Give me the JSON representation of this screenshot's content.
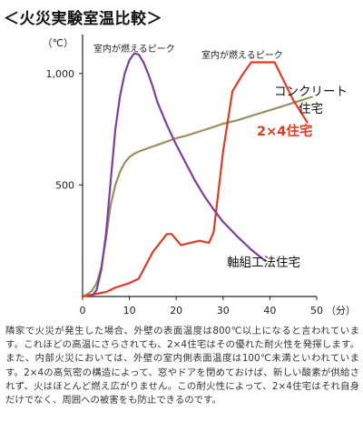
{
  "chart_data": {
    "type": "line",
    "title": "＜火災実験室温比較＞",
    "ylabel": "（℃）",
    "xlabel": "（分）",
    "xlim": [
      0,
      50
    ],
    "ylim": [
      0,
      1150
    ],
    "xticks": [
      0,
      10,
      20,
      30,
      40,
      50
    ],
    "xtick_labels": [
      "0",
      "10",
      "20",
      "30",
      "40",
      "50"
    ],
    "yticks": [
      500,
      1000
    ],
    "ytick_labels": [
      "500",
      "1,000"
    ],
    "grid": false,
    "legend": "inline-labels",
    "series": [
      {
        "name": "コンクリート住宅",
        "color": "#9a8f5f",
        "x": [
          0,
          1,
          2,
          3,
          4,
          5,
          6,
          7,
          8,
          9,
          10,
          11,
          12,
          14,
          16,
          18,
          20,
          22,
          25,
          28,
          30,
          33,
          36,
          40,
          43,
          46,
          49
        ],
        "y": [
          0,
          10,
          25,
          60,
          130,
          260,
          410,
          500,
          560,
          600,
          625,
          640,
          650,
          665,
          680,
          695,
          710,
          720,
          740,
          760,
          775,
          790,
          810,
          835,
          855,
          875,
          895
        ]
      },
      {
        "name": "2×4住宅",
        "color": "#e03a22",
        "x": [
          0,
          5,
          7,
          10,
          12,
          15,
          18,
          19,
          21,
          23,
          25,
          27,
          28,
          30,
          32,
          34,
          36,
          38,
          41,
          45,
          48
        ],
        "y": [
          0,
          20,
          40,
          60,
          80,
          200,
          280,
          280,
          230,
          240,
          250,
          240,
          290,
          650,
          920,
          990,
          1050,
          1050,
          1050,
          880,
          780
        ]
      },
      {
        "name": "軸組工法住宅",
        "color": "#7a3fa0",
        "x": [
          2,
          3,
          4,
          5,
          6,
          7,
          8,
          9,
          10,
          11,
          12,
          13,
          14,
          15,
          16,
          18,
          20,
          22,
          24,
          26,
          28,
          30,
          33,
          36,
          39
        ],
        "y": [
          0,
          30,
          120,
          280,
          520,
          750,
          900,
          1000,
          1060,
          1090,
          1085,
          1050,
          1000,
          940,
          870,
          770,
          680,
          600,
          520,
          450,
          390,
          335,
          270,
          210,
          160
        ]
      }
    ],
    "annotations": [
      {
        "text": "室内が燃えるピーク",
        "x": 11.5,
        "y": 1120
      },
      {
        "text": "室内が燃えるピーク",
        "x": 38,
        "y": 1110
      }
    ]
  },
  "description": "隣家で火災が発生した場合、外壁の表面温度は800℃以上になると言われています。これほどの高温にさらされても、2×4住宅はその優れた耐火性を発揮します。また、内部火災においては、外壁の室内側表面温度は100℃未満といわれています。2×4の高気密の構造によって、窓やドアを閉めておけば、新しい酸素が供給されず、火はほとんど燃え広がりません。この耐火性によって、2×4住宅はそれ自身だけでなく、周囲への被害をも防止できるのです。"
}
